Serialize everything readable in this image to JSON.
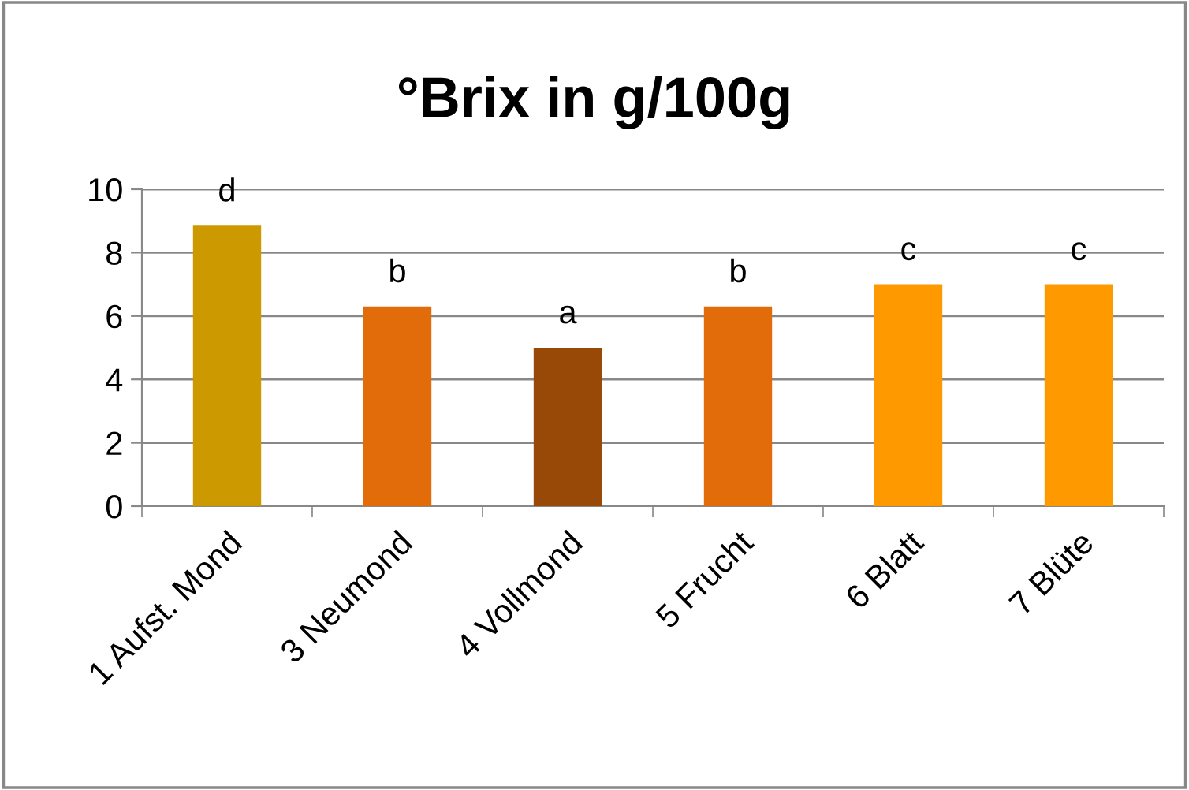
{
  "chart_data": {
    "type": "bar",
    "title": "°Brix in g/100g",
    "categories": [
      "1 Aufst. Mond",
      "3 Neumond",
      "4 Vollmond",
      "5 Frucht",
      "6 Blatt",
      "7 Blüte"
    ],
    "values": [
      8.85,
      6.3,
      5.0,
      6.3,
      7.0,
      7.0
    ],
    "colors": [
      "#cc9900",
      "#e36c0a",
      "#984807",
      "#e36c0a",
      "#ff9900",
      "#ff9900"
    ],
    "ylim": [
      0,
      10
    ],
    "yticks": [
      0,
      2,
      4,
      6,
      8,
      10
    ],
    "grid": "y",
    "annotations": [
      {
        "text": "d",
        "x": "1 Aufst. Mond",
        "y": 8.85
      },
      {
        "text": "b",
        "x": "3 Neumond",
        "y": 6.3
      },
      {
        "text": "a",
        "x": "4 Vollmond",
        "y": 5.0
      },
      {
        "text": "b",
        "x": "5 Frucht",
        "y": 6.3
      },
      {
        "text": "c",
        "x": "6 Blatt",
        "y": 7.0
      },
      {
        "text": "c",
        "x": "7 Blüte",
        "y": 7.0
      }
    ]
  }
}
